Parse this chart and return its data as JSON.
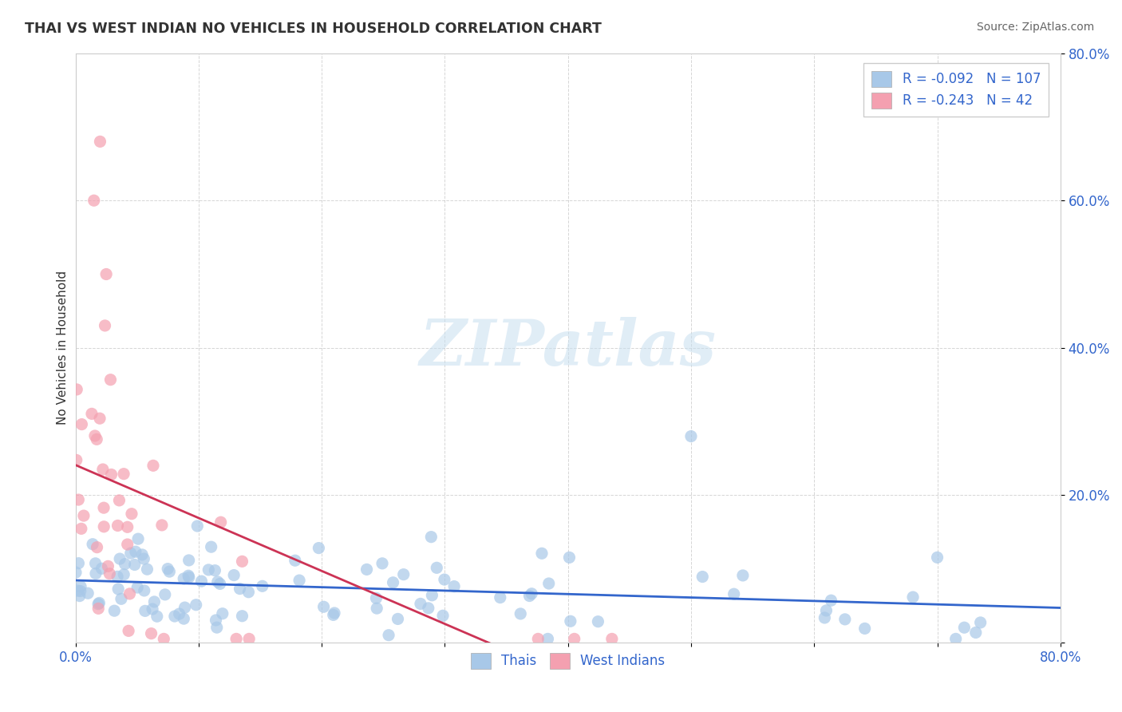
{
  "title": "THAI VS WEST INDIAN NO VEHICLES IN HOUSEHOLD CORRELATION CHART",
  "source": "Source: ZipAtlas.com",
  "ylabel": "No Vehicles in Household",
  "xlim": [
    0.0,
    0.8
  ],
  "ylim": [
    0.0,
    0.8
  ],
  "thai_R": -0.092,
  "thai_N": 107,
  "west_indian_R": -0.243,
  "west_indian_N": 42,
  "blue_scatter_color": "#a8c8e8",
  "pink_scatter_color": "#f4a0b0",
  "blue_line_color": "#3366cc",
  "pink_line_color": "#cc3355",
  "blue_patch_color": "#a8c8e8",
  "pink_patch_color": "#f4a0b0",
  "legend_label_thai": "Thais",
  "legend_label_west": "West Indians",
  "background_color": "#ffffff",
  "grid_color": "#bbbbbb",
  "title_color": "#333333",
  "source_color": "#666666",
  "tick_color": "#3366cc",
  "ylabel_color": "#333333",
  "watermark_color": "#c8dff0",
  "watermark": "ZIPatlas",
  "seed": 12
}
